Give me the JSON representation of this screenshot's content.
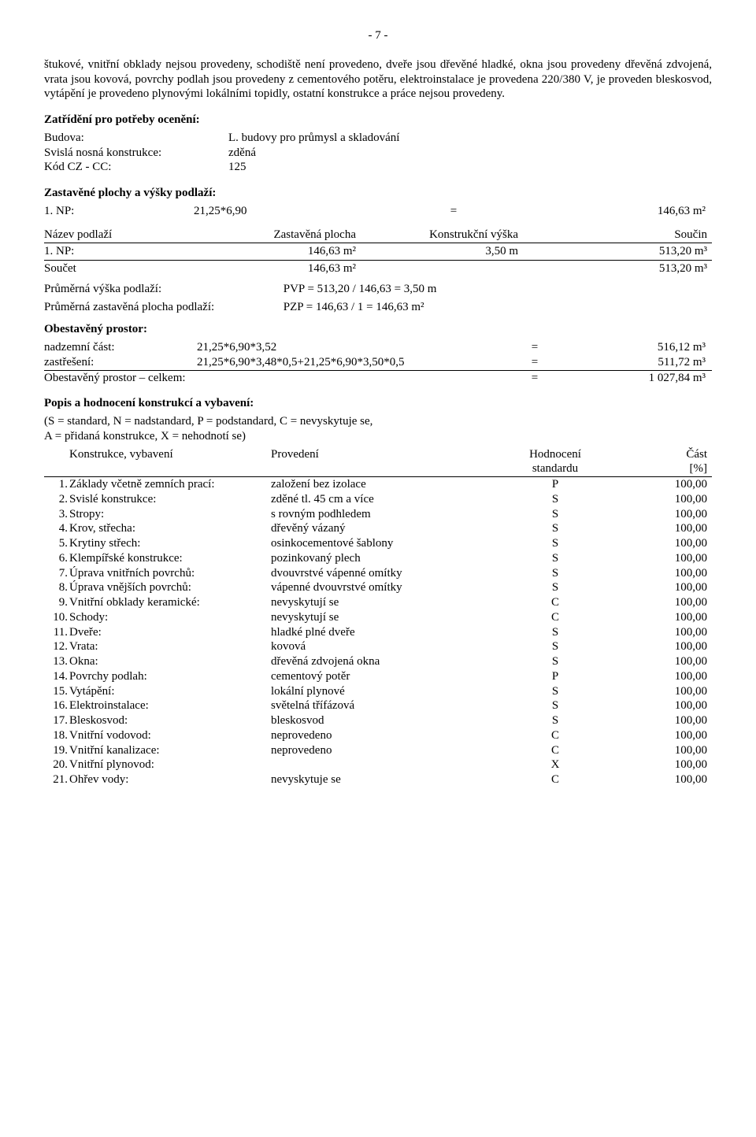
{
  "page_number": "- 7 -",
  "intro_paragraph": "štukové, vnitřní obklady nejsou provedeny, schodiště není provedeno, dveře jsou dřevěné hladké, okna jsou provedeny dřevěná zdvojená, vrata jsou kovová, povrchy podlah jsou provedeny z cementového potěru, elektroinstalace je provedena 220/380 V, je proveden bleskosvod, vytápění je provedeno plynovými lokálními topidly, ostatní konstrukce a práce nejsou provedeny.",
  "zatrideni": {
    "title": "Zatřídění pro potřeby ocenění:",
    "rows": [
      {
        "k": "Budova:",
        "v": "L. budovy pro průmysl a skladování"
      },
      {
        "k": "Svislá nosná konstrukce:",
        "v": "zděná"
      },
      {
        "k": "Kód CZ - CC:",
        "v": "125"
      }
    ]
  },
  "zastavene": {
    "title": "Zastavěné plochy a výšky podlaží:",
    "np_line": {
      "label": "1. NP:",
      "expr": "21,25*6,90",
      "eq": "=",
      "res": "146,63 m²"
    },
    "headers": [
      "Název podlaží",
      "Zastavěná plocha",
      "Konstrukční výška",
      "Součin"
    ],
    "rows": [
      {
        "a": "1. NP:",
        "b": "146,63 m²",
        "c": "3,50 m",
        "d": "513,20 m³"
      }
    ],
    "sum": {
      "a": "Součet",
      "b": "146,63 m²",
      "c": "",
      "d": "513,20 m³"
    },
    "pvp_label": "Průměrná výška podlaží:",
    "pvp_val": "PVP = 513,20 / 146,63 = 3,50 m",
    "pzp_label": "Průměrná zastavěná plocha podlaží:",
    "pzp_val": "PZP = 146,63 / 1 = 146,63 m²"
  },
  "obestaveny": {
    "title": "Obestavěný prostor:",
    "rows": [
      {
        "a": "nadzemní část:",
        "b": "21,25*6,90*3,52",
        "eq": "=",
        "r": "516,12 m³"
      },
      {
        "a": "zastřešení:",
        "b": "21,25*6,90*3,48*0,5+21,25*6,90*3,50*0,5",
        "eq": "=",
        "r": "511,72 m³"
      }
    ],
    "total": {
      "a": "Obestavěný prostor – celkem:",
      "eq": "=",
      "r": "1 027,84 m³"
    }
  },
  "popis": {
    "title": "Popis a hodnocení konstrukcí a vybavení:",
    "legend1": "(S = standard, N = nadstandard, P = podstandard, C = nevyskytuje se,",
    "legend2": "A = přidaná konstrukce, X = nehodnotí se)",
    "headers": {
      "name": "Konstrukce, vybavení",
      "prov": "Provedení",
      "hod1": "Hodnocení",
      "hod2": "standardu",
      "part1": "Část",
      "part2": "[%]"
    },
    "rows": [
      {
        "i": "1.",
        "n": "Základy včetně zemních prací:",
        "p": "založení bez izolace",
        "h": "P",
        "c": "100,00"
      },
      {
        "i": "2.",
        "n": "Svislé konstrukce:",
        "p": "zděné tl. 45 cm a více",
        "h": "S",
        "c": "100,00"
      },
      {
        "i": "3.",
        "n": "Stropy:",
        "p": "s rovným podhledem",
        "h": "S",
        "c": "100,00"
      },
      {
        "i": "4.",
        "n": "Krov, střecha:",
        "p": "dřevěný vázaný",
        "h": "S",
        "c": "100,00"
      },
      {
        "i": "5.",
        "n": "Krytiny střech:",
        "p": "osinkocementové šablony",
        "h": "S",
        "c": "100,00"
      },
      {
        "i": "6.",
        "n": "Klempířské konstrukce:",
        "p": "pozinkovaný plech",
        "h": "S",
        "c": "100,00"
      },
      {
        "i": "7.",
        "n": "Úprava vnitřních povrchů:",
        "p": "dvouvrstvé vápenné omítky",
        "h": "S",
        "c": "100,00"
      },
      {
        "i": "8.",
        "n": "Úprava vnějších povrchů:",
        "p": "vápenné dvouvrstvé omítky",
        "h": "S",
        "c": "100,00"
      },
      {
        "i": "9.",
        "n": "Vnitřní obklady keramické:",
        "p": "nevyskytují se",
        "h": "C",
        "c": "100,00"
      },
      {
        "i": "10.",
        "n": "Schody:",
        "p": "nevyskytují se",
        "h": "C",
        "c": "100,00"
      },
      {
        "i": "11.",
        "n": "Dveře:",
        "p": "hladké plné dveře",
        "h": "S",
        "c": "100,00"
      },
      {
        "i": "12.",
        "n": "Vrata:",
        "p": "kovová",
        "h": "S",
        "c": "100,00"
      },
      {
        "i": "13.",
        "n": "Okna:",
        "p": "dřevěná zdvojená okna",
        "h": "S",
        "c": "100,00"
      },
      {
        "i": "14.",
        "n": "Povrchy podlah:",
        "p": "cementový potěr",
        "h": "P",
        "c": "100,00"
      },
      {
        "i": "15.",
        "n": "Vytápění:",
        "p": "lokální plynové",
        "h": "S",
        "c": "100,00"
      },
      {
        "i": "16.",
        "n": "Elektroinstalace:",
        "p": "světelná  třífázová",
        "h": "S",
        "c": "100,00"
      },
      {
        "i": "17.",
        "n": "Bleskosvod:",
        "p": "bleskosvod",
        "h": "S",
        "c": "100,00"
      },
      {
        "i": "18.",
        "n": "Vnitřní vodovod:",
        "p": "neprovedeno",
        "h": "C",
        "c": "100,00"
      },
      {
        "i": "19.",
        "n": "Vnitřní kanalizace:",
        "p": "neprovedeno",
        "h": "C",
        "c": "100,00"
      },
      {
        "i": "20.",
        "n": "Vnitřní plynovod:",
        "p": "",
        "h": "X",
        "c": "100,00"
      },
      {
        "i": "21.",
        "n": "Ohřev vody:",
        "p": "nevyskytuje se",
        "h": "C",
        "c": "100,00"
      }
    ]
  }
}
